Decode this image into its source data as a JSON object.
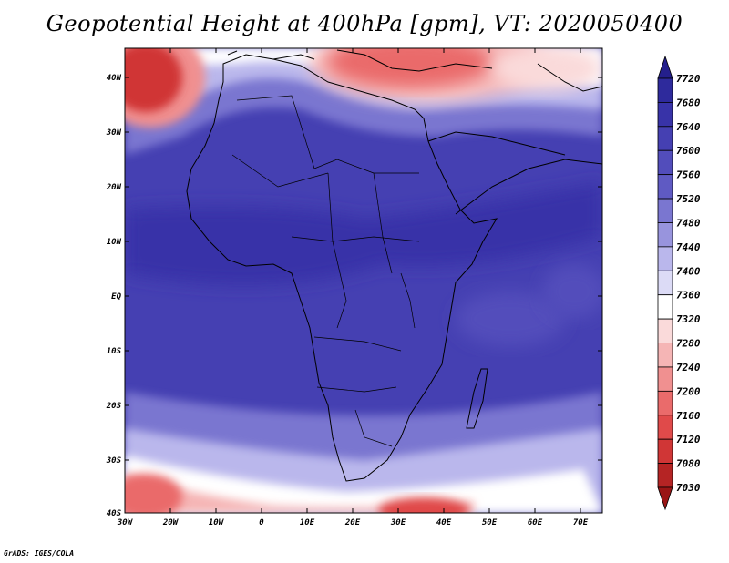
{
  "title": "Geopotential Height at 400hPa [gpm], VT: 2020050400",
  "credit": "GrADS: IGES/COLA",
  "map": {
    "lon_labels": [
      "30W",
      "20W",
      "10W",
      "0",
      "10E",
      "20E",
      "30E",
      "40E",
      "50E",
      "60E",
      "70E"
    ],
    "lat_labels": [
      "40N",
      "30N",
      "20N",
      "10N",
      "EQ",
      "10S",
      "20S",
      "30S",
      "40S"
    ]
  },
  "colorbar": {
    "labels": [
      "7720",
      "7680",
      "7640",
      "7600",
      "7560",
      "7520",
      "7480",
      "7440",
      "7400",
      "7360",
      "7320",
      "7280",
      "7240",
      "7200",
      "7160",
      "7120",
      "7080",
      "7030"
    ],
    "colors": [
      "#241f8c",
      "#2e2a9c",
      "#3833a8",
      "#4540b2",
      "#524dbb",
      "#5f5ac3",
      "#7a76d0",
      "#9894dd",
      "#bab7ec",
      "#dcdbf6",
      "#ffffff",
      "#fadada",
      "#f5b5b5",
      "#f09090",
      "#ea6b6b",
      "#e04a4a",
      "#d03636",
      "#b52424",
      "#9a1515"
    ]
  }
}
